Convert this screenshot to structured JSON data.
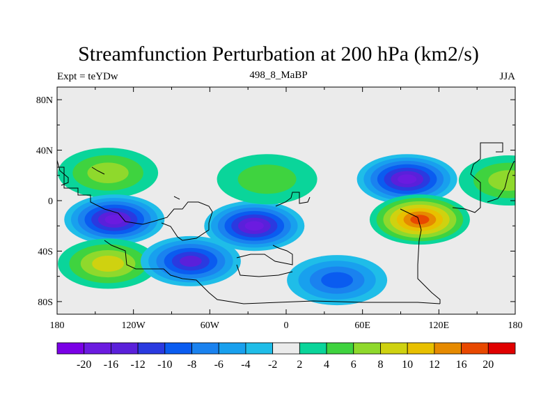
{
  "header": {
    "title": "Streamfunction Perturbation at 200 hPa (km2/s)",
    "left": "Expt = teYDw",
    "center": "498_8_MaBP",
    "right": "JJA"
  },
  "chart_data": {
    "type": "heatmap",
    "title": "Streamfunction Perturbation at 200 hPa (km2/s)",
    "xlabel": "",
    "ylabel": "",
    "xlim": [
      -180,
      180
    ],
    "ylim": [
      -90,
      90
    ],
    "x_ticks": [
      {
        "value": -180,
        "label": "180"
      },
      {
        "value": -120,
        "label": "120W"
      },
      {
        "value": -60,
        "label": "60W"
      },
      {
        "value": 0,
        "label": "0"
      },
      {
        "value": 60,
        "label": "60E"
      },
      {
        "value": 120,
        "label": "120E"
      },
      {
        "value": 180,
        "label": "180"
      }
    ],
    "y_ticks": [
      {
        "value": 80,
        "label": "80N"
      },
      {
        "value": 40,
        "label": "40N"
      },
      {
        "value": 0,
        "label": "0"
      },
      {
        "value": -40,
        "label": "40S"
      },
      {
        "value": -80,
        "label": "80S"
      }
    ],
    "colorbar": {
      "levels": [
        "-20",
        "-16",
        "-12",
        "-10",
        "-8",
        "-6",
        "-4",
        "-2",
        "2",
        "4",
        "6",
        "8",
        "10",
        "12",
        "16",
        "20"
      ],
      "colors": [
        "#7a00e6",
        "#6b1be0",
        "#5a20da",
        "#2a3ae0",
        "#0a5cf0",
        "#1a82ef",
        "#18a0ee",
        "#1fbde8",
        "#ebebeb",
        "#0ad59a",
        "#3fd33f",
        "#8fd92c",
        "#cfd210",
        "#e8c000",
        "#e68a00",
        "#e84800",
        "#e00000"
      ]
    },
    "features": [
      {
        "name": "north-pacific-high",
        "lon": -140,
        "lat": 22,
        "value": 8
      },
      {
        "name": "tropical-pacific-low",
        "lon": -135,
        "lat": -15,
        "value": -16
      },
      {
        "name": "south-pacific-high",
        "lon": -140,
        "lat": -50,
        "value": 10
      },
      {
        "name": "south-america-low",
        "lon": -75,
        "lat": -48,
        "value": -12
      },
      {
        "name": "tropical-atlantic-low",
        "lon": -25,
        "lat": -20,
        "value": -16
      },
      {
        "name": "north-atlantic-high",
        "lon": -15,
        "lat": 17,
        "value": 6
      },
      {
        "name": "southern-indian-low",
        "lon": 40,
        "lat": -63,
        "value": -8
      },
      {
        "name": "asian-low",
        "lon": 95,
        "lat": 17,
        "value": -16
      },
      {
        "name": "indian-ocean-high",
        "lon": 105,
        "lat": -15,
        "value": 20
      },
      {
        "name": "west-pacific-high",
        "lon": 175,
        "lat": 16,
        "value": 8
      }
    ]
  }
}
